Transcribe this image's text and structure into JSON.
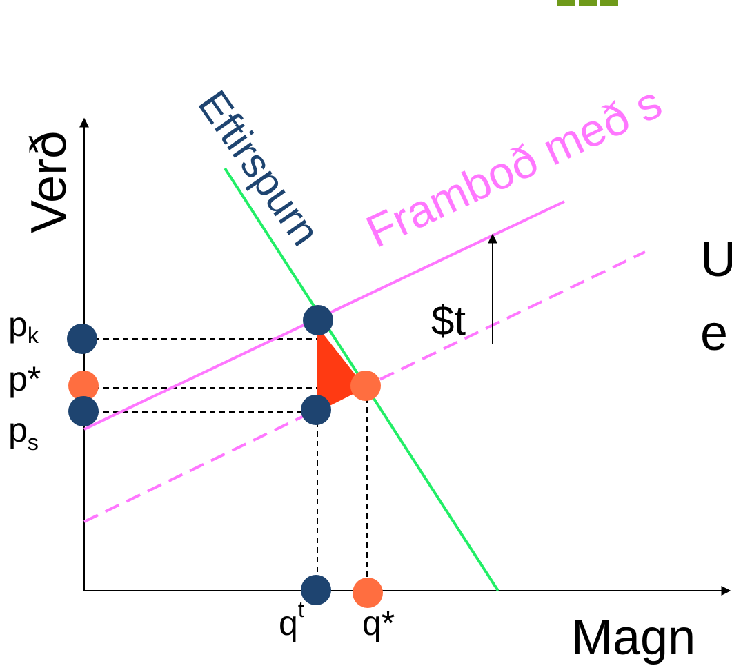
{
  "axes": {
    "y_label": "Verð",
    "x_label": "Magn"
  },
  "curves": {
    "demand_label": "Eftirspurn",
    "supply_tax_label": "Framboð með s",
    "tax_label": "$t"
  },
  "price_labels": {
    "pk": {
      "base": "p",
      "sub": "k"
    },
    "pstar": "p*",
    "ps": {
      "base": "p",
      "sub": "s"
    }
  },
  "quantity_labels": {
    "qt": {
      "base": "q",
      "sup": "t"
    },
    "qstar": "q*"
  },
  "right_text": {
    "line1": "U",
    "line2": "e"
  },
  "colors": {
    "demand": "#22ee66",
    "supply": "#ff77ff",
    "navy": "#1e4470",
    "orange": "#ff6e40",
    "deadweight": "#ff3a12",
    "logo": "#6f9a1a",
    "axis": "#000000"
  }
}
